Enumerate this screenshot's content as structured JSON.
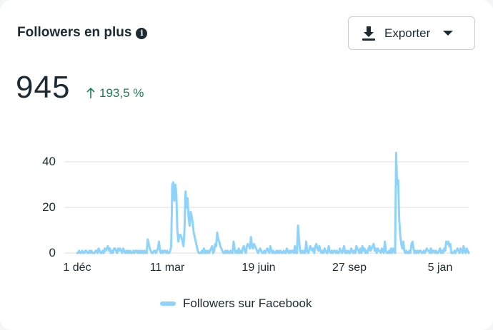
{
  "header": {
    "title": "Followers en plus",
    "info_icon": "info-icon",
    "export_label": "Exporter",
    "export_icon": "download-icon",
    "export_caret_icon": "caret-down-icon"
  },
  "summary": {
    "total": "945",
    "delta_icon": "arrow-up-icon",
    "delta": "193,5 %",
    "delta_color": "#17804f"
  },
  "legend": {
    "label": "Followers sur Facebook",
    "color": "#8dd3fb"
  },
  "chart_data": {
    "type": "line",
    "title": "Followers en plus",
    "xlabel": "",
    "ylabel": "",
    "ylim": [
      0,
      45
    ],
    "yticks": [
      0,
      20,
      40
    ],
    "xtick_labels": [
      "1 déc",
      "11 mar",
      "19 juin",
      "27 sep",
      "5 jan"
    ],
    "grid": true,
    "legend_position": "bottom",
    "series": [
      {
        "name": "Followers sur Facebook",
        "color": "#8dd3fb",
        "x_start_label": "1 déc",
        "values": [
          0,
          0,
          1,
          0,
          0,
          1,
          0,
          0,
          1,
          1,
          0,
          0,
          1,
          0,
          1,
          0,
          0,
          0,
          1,
          1,
          0,
          2,
          1,
          0,
          0,
          1,
          0,
          2,
          1,
          2,
          3,
          1,
          2,
          0,
          1,
          0,
          2,
          2,
          1,
          0,
          2,
          1,
          2,
          1,
          0,
          2,
          1,
          0,
          1,
          0,
          1,
          0,
          1,
          0,
          0,
          1,
          0,
          1,
          1,
          0,
          1,
          0,
          1,
          0,
          1,
          0,
          1,
          0,
          0,
          6,
          4,
          2,
          1,
          0,
          0,
          1,
          1,
          0,
          1,
          2,
          5,
          1,
          0,
          1,
          0,
          1,
          1,
          0,
          1,
          0,
          0,
          1,
          3,
          30,
          31,
          23,
          30,
          26,
          10,
          5,
          8,
          8,
          7,
          5,
          3,
          10,
          27,
          20,
          24,
          15,
          12,
          18,
          16,
          13,
          9,
          7,
          5,
          3,
          1,
          0,
          0,
          0,
          1,
          0,
          2,
          0,
          1,
          0,
          1,
          0,
          1,
          2,
          3,
          0,
          1,
          4,
          3,
          9,
          6,
          5,
          3,
          2,
          1,
          0,
          0,
          1,
          0,
          1,
          0,
          0,
          1,
          0,
          0,
          5,
          2,
          0,
          1,
          0,
          2,
          0,
          1,
          0,
          2,
          3,
          1,
          0,
          3,
          4,
          3,
          2,
          7,
          3,
          2,
          4,
          3,
          2,
          1,
          0,
          1,
          2,
          1,
          0,
          0,
          1,
          0,
          1,
          2,
          1,
          0,
          3,
          1,
          0,
          1,
          0,
          0,
          1,
          0,
          1,
          0,
          1,
          0,
          0,
          1,
          0,
          0,
          2,
          1,
          0,
          1,
          0,
          1,
          1,
          0,
          3,
          0,
          0,
          12,
          6,
          1,
          0,
          1,
          0,
          1,
          0,
          5,
          1,
          0,
          1,
          3,
          2,
          1,
          2,
          0,
          3,
          4,
          2,
          1,
          3,
          1,
          0,
          1,
          0,
          2,
          1,
          0,
          0,
          3,
          1,
          0,
          1,
          0,
          1,
          1,
          0,
          1,
          0,
          0,
          2,
          1,
          0,
          1,
          3,
          0,
          1,
          0,
          1,
          0,
          0,
          2,
          1,
          0,
          1,
          0,
          3,
          2,
          1,
          0,
          2,
          0,
          3,
          1,
          2,
          0,
          1,
          0,
          2,
          3,
          1,
          2,
          3,
          4,
          1,
          2,
          0,
          2,
          1,
          1,
          0,
          2,
          1,
          0,
          5,
          1,
          0,
          0,
          1,
          0,
          2,
          0,
          2,
          1,
          0,
          44,
          30,
          32,
          15,
          8,
          4,
          2,
          5,
          1,
          0,
          1,
          0,
          0,
          1,
          0,
          4,
          5,
          2,
          0,
          1,
          0,
          1,
          0,
          1,
          1,
          0,
          0,
          1,
          0,
          1,
          2,
          1,
          1,
          0,
          2,
          0,
          1,
          1,
          0,
          1,
          0,
          0,
          1,
          2,
          0,
          1,
          0,
          2,
          1,
          5,
          4,
          5,
          3,
          4,
          0,
          0,
          0,
          1,
          0,
          1,
          2,
          1,
          0,
          2,
          1,
          0,
          3,
          1,
          0,
          2,
          1,
          0
        ]
      }
    ]
  }
}
